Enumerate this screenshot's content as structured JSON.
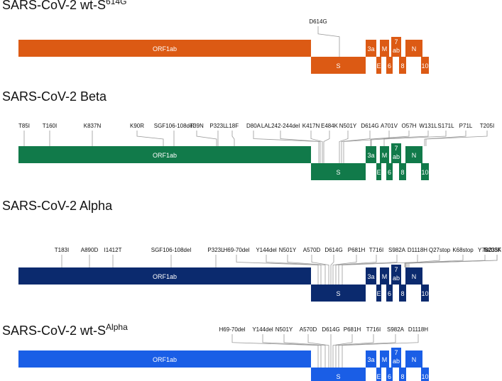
{
  "panels": [
    {
      "title_main": "SARS-CoV-2 wt-S",
      "title_sup": "614G",
      "color": "#dc5a14",
      "mutations": [
        "D614G"
      ]
    },
    {
      "title_main": "SARS-CoV-2 Beta",
      "title_sup": "",
      "color": "#117a4a",
      "mutations": [
        "T85I",
        "T160I",
        "K837N",
        "K90R",
        "SGF106-108del",
        "T39N",
        "P323L",
        "L18F",
        "D80A",
        "LAL242-244del",
        "K417N",
        "E484K",
        "N501Y",
        "D614G",
        "A701V",
        "O57H",
        "W131L",
        "S171L",
        "P71L",
        "T205I"
      ]
    },
    {
      "title_main": "SARS-CoV-2 Alpha",
      "title_sup": "",
      "color": "#0b2a6e",
      "mutations": [
        "T183I",
        "A890D",
        "I1412T",
        "SGF106-108del",
        "P323L",
        "H69-70del",
        "Y144del",
        "N501Y",
        "A570D",
        "D614G",
        "P681H",
        "T716I",
        "S982A",
        "D1118H",
        "Q27stop",
        "K68stop",
        "Y73C",
        "R203K",
        "S235F"
      ]
    },
    {
      "title_main": "SARS-CoV-2 wt-S",
      "title_sup": "Alpha",
      "color": "#1a5ee6",
      "mutations": [
        "H69-70del",
        "Y144del",
        "N501Y",
        "A570D",
        "D614G",
        "P681H",
        "T716I",
        "S982A",
        "D1118H"
      ]
    }
  ],
  "genes": {
    "orf1ab": "ORF1ab",
    "s": "S",
    "orf3a": "3a",
    "e": "E",
    "m": "M",
    "orf6": "6",
    "orf7": "7",
    "orf7_sub": "ab",
    "orf8": "8",
    "n": "N",
    "orf10": "10"
  }
}
